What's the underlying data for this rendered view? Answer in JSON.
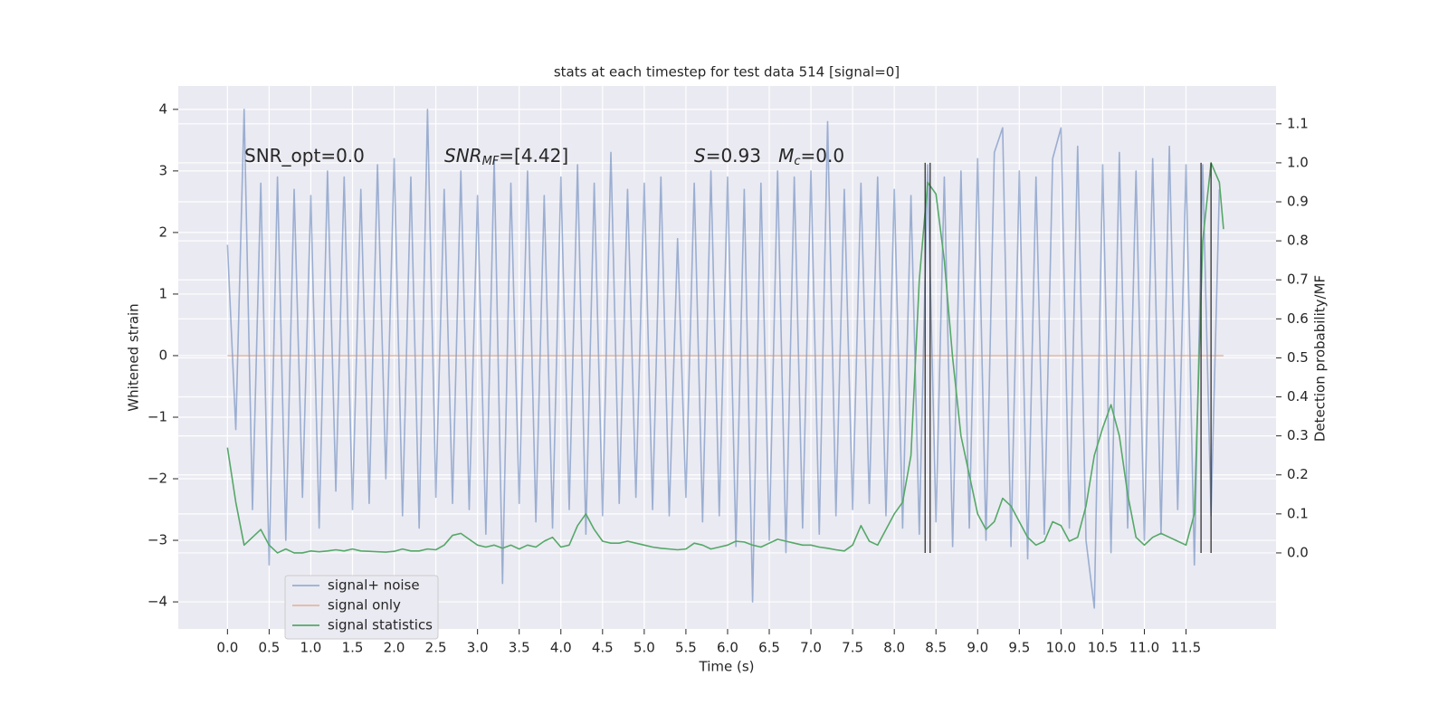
{
  "chart_data": {
    "type": "line",
    "title": "stats at each timestep for test data 514 [signal=0]",
    "xlabel": "Time (s)",
    "ylabel": "Whitened strain",
    "y2label": "Detection probability/MF",
    "xlim": [
      -0.59,
      12.58
    ],
    "ylim": [
      -4.44,
      4.38
    ],
    "y2lim": [
      -0.195,
      1.197
    ],
    "xticks": [
      {
        "value": 0,
        "label": "0.0"
      },
      0.5,
      {
        "value": 1,
        "label": "1.0"
      },
      1.5,
      {
        "value": 2,
        "label": "2.0"
      },
      2.5,
      {
        "value": 3,
        "label": "3.0"
      },
      3.5,
      {
        "value": 4,
        "label": "4.0"
      },
      4.5,
      {
        "value": 5,
        "label": "5.0"
      },
      5.5,
      {
        "value": 6,
        "label": "6.0"
      },
      6.5,
      {
        "value": 7,
        "label": "7.0"
      },
      7.5,
      {
        "value": 8,
        "label": "8.0"
      },
      8.5,
      {
        "value": 9,
        "label": "9.0"
      },
      9.5,
      {
        "value": 10,
        "label": "10.0"
      },
      10.5,
      {
        "value": 11,
        "label": "11.0"
      },
      11.5
    ],
    "yticks": [
      {
        "value": -4,
        "label": "−4"
      },
      {
        "value": -3,
        "label": "−3"
      },
      {
        "value": -2,
        "label": "−2"
      },
      {
        "value": -1,
        "label": "−1"
      },
      0,
      1,
      2,
      3,
      4
    ],
    "y2ticks": [
      {
        "value": 0,
        "label": "0.0"
      },
      0.1,
      0.2,
      0.3,
      0.4,
      0.5,
      0.6,
      0.7,
      0.8,
      0.9,
      {
        "value": 1,
        "label": "1.0"
      },
      1.1
    ],
    "grid": true,
    "legend_loc": "lower left",
    "series": [
      {
        "name": "signal+ noise",
        "color": "#4c72b0",
        "opacity": 0.5,
        "x": [
          0,
          0.1,
          0.2,
          0.3,
          0.4,
          0.5,
          0.6,
          0.7,
          0.8,
          0.9,
          1,
          1.1,
          1.2,
          1.3,
          1.4,
          1.5,
          1.6,
          1.7,
          1.8,
          1.9,
          2,
          2.1,
          2.2,
          2.3,
          2.4,
          2.5,
          2.6,
          2.7,
          2.8,
          2.9,
          3,
          3.1,
          3.2,
          3.3,
          3.4,
          3.5,
          3.6,
          3.7,
          3.8,
          3.9,
          4,
          4.1,
          4.2,
          4.3,
          4.4,
          4.5,
          4.6,
          4.7,
          4.8,
          4.9,
          5,
          5.1,
          5.2,
          5.3,
          5.4,
          5.5,
          5.6,
          5.7,
          5.8,
          5.9,
          6,
          6.1,
          6.2,
          6.3,
          6.4,
          6.5,
          6.6,
          6.7,
          6.8,
          6.9,
          7,
          7.1,
          7.2,
          7.3,
          7.4,
          7.5,
          7.6,
          7.7,
          7.8,
          7.9,
          8,
          8.1,
          8.2,
          8.3,
          8.4,
          8.5,
          8.6,
          8.7,
          8.8,
          8.9,
          9,
          9.1,
          9.2,
          9.3,
          9.4,
          9.5,
          9.6,
          9.7,
          9.8,
          9.9,
          10,
          10.1,
          10.2,
          10.3,
          10.4,
          10.5,
          10.6,
          10.7,
          10.8,
          10.9,
          11,
          11.1,
          11.2,
          11.3,
          11.4,
          11.5,
          11.6,
          11.7,
          11.8,
          11.9
        ],
        "values": [
          1.8,
          -1.2,
          4.0,
          -2.5,
          2.8,
          -3.4,
          2.9,
          -3.0,
          2.7,
          -2.3,
          2.6,
          -2.8,
          3.0,
          -2.2,
          2.9,
          -2.5,
          2.7,
          -2.4,
          3.1,
          -2.0,
          3.2,
          -2.6,
          2.9,
          -2.8,
          4.0,
          -2.3,
          2.7,
          -2.4,
          3.0,
          -2.5,
          2.6,
          -2.9,
          3.2,
          -3.7,
          2.8,
          -2.4,
          3.0,
          -2.7,
          2.6,
          -2.8,
          2.9,
          -2.5,
          3.1,
          -2.9,
          2.8,
          -2.6,
          3.3,
          -2.4,
          2.7,
          -2.3,
          2.8,
          -2.5,
          2.9,
          -2.6,
          1.9,
          -2.3,
          2.8,
          -2.7,
          3.0,
          -2.6,
          2.9,
          -3.1,
          2.7,
          -4.0,
          2.8,
          -3.0,
          3.0,
          -3.2,
          2.9,
          -2.8,
          3.0,
          -2.9,
          3.8,
          -2.6,
          2.7,
          -2.5,
          2.8,
          -2.4,
          2.9,
          -2.6,
          2.7,
          -2.8,
          2.6,
          -2.9,
          3.1,
          -2.7,
          2.9,
          -3.1,
          3.0,
          -2.8,
          3.2,
          -3.0,
          3.3,
          3.7,
          -3.1,
          3.0,
          -3.3,
          2.9,
          -2.9,
          3.2,
          3.7,
          -2.8,
          3.4,
          -3.0,
          -4.1,
          3.1,
          -3.2,
          3.3,
          -2.8,
          3.0,
          -3.0,
          3.2,
          -2.9,
          3.4,
          -2.5,
          3.1,
          -3.4,
          3.1,
          -2.6,
          2.7
        ]
      },
      {
        "name": "signal only",
        "color": "#dd8452",
        "opacity": 0.5,
        "x": [
          0,
          11.95
        ],
        "values": [
          0,
          0
        ]
      },
      {
        "name": "signal statistics",
        "color": "#55a868",
        "opacity": 1,
        "axis": "y2",
        "x": [
          0,
          0.1,
          0.2,
          0.3,
          0.4,
          0.5,
          0.6,
          0.7,
          0.8,
          0.9,
          1,
          1.1,
          1.2,
          1.3,
          1.4,
          1.5,
          1.6,
          1.7,
          1.8,
          1.9,
          2,
          2.1,
          2.2,
          2.3,
          2.4,
          2.5,
          2.6,
          2.7,
          2.8,
          2.9,
          3,
          3.1,
          3.2,
          3.3,
          3.4,
          3.5,
          3.6,
          3.7,
          3.8,
          3.9,
          4,
          4.1,
          4.2,
          4.3,
          4.4,
          4.5,
          4.6,
          4.7,
          4.8,
          4.9,
          5,
          5.1,
          5.2,
          5.3,
          5.4,
          5.5,
          5.6,
          5.7,
          5.8,
          5.9,
          6,
          6.1,
          6.2,
          6.3,
          6.4,
          6.5,
          6.6,
          6.7,
          6.8,
          6.9,
          7,
          7.1,
          7.2,
          7.3,
          7.4,
          7.5,
          7.6,
          7.7,
          7.8,
          7.9,
          8,
          8.1,
          8.2,
          8.3,
          8.4,
          8.5,
          8.6,
          8.7,
          8.8,
          8.9,
          9,
          9.1,
          9.2,
          9.3,
          9.4,
          9.5,
          9.6,
          9.7,
          9.8,
          9.9,
          10,
          10.1,
          10.2,
          10.3,
          10.4,
          10.5,
          10.6,
          10.7,
          10.8,
          10.9,
          11,
          11.1,
          11.2,
          11.3,
          11.4,
          11.5,
          11.6,
          11.7,
          11.8,
          11.9,
          11.95
        ],
        "values": [
          0.27,
          0.13,
          0.02,
          0.04,
          0.06,
          0.02,
          0.0,
          0.01,
          0.0,
          0.0,
          0.005,
          0.003,
          0.005,
          0.008,
          0.005,
          0.01,
          0.005,
          0.004,
          0.003,
          0.002,
          0.004,
          0.01,
          0.005,
          0.005,
          0.01,
          0.008,
          0.02,
          0.045,
          0.05,
          0.035,
          0.02,
          0.015,
          0.02,
          0.012,
          0.02,
          0.01,
          0.02,
          0.015,
          0.03,
          0.04,
          0.015,
          0.02,
          0.07,
          0.1,
          0.06,
          0.03,
          0.025,
          0.025,
          0.03,
          0.025,
          0.02,
          0.015,
          0.012,
          0.01,
          0.008,
          0.01,
          0.025,
          0.02,
          0.01,
          0.015,
          0.02,
          0.03,
          0.028,
          0.02,
          0.015,
          0.025,
          0.035,
          0.03,
          0.025,
          0.02,
          0.02,
          0.015,
          0.012,
          0.008,
          0.005,
          0.02,
          0.07,
          0.03,
          0.02,
          0.06,
          0.1,
          0.13,
          0.25,
          0.7,
          0.95,
          0.92,
          0.75,
          0.5,
          0.3,
          0.2,
          0.1,
          0.06,
          0.08,
          0.14,
          0.12,
          0.08,
          0.04,
          0.02,
          0.03,
          0.08,
          0.07,
          0.03,
          0.04,
          0.12,
          0.25,
          0.32,
          0.38,
          0.3,
          0.15,
          0.04,
          0.02,
          0.04,
          0.05,
          0.04,
          0.03,
          0.02,
          0.1,
          0.8,
          1.0,
          0.95,
          0.83
        ]
      }
    ],
    "vlines": {
      "color": "#333333",
      "x": [
        8.37,
        8.43,
        11.68,
        11.8
      ],
      "range": [
        0,
        1
      ]
    },
    "annotations": [
      {
        "parts": [
          {
            "text": "SNR_opt=0.0",
            "style": "normal"
          }
        ]
      },
      {
        "parts": [
          {
            "text": "SNR",
            "style": "italic"
          },
          {
            "text": "MF",
            "style": "sub"
          },
          {
            "text": "=[4.42]",
            "style": "normal"
          }
        ]
      },
      {
        "parts": [
          {
            "text": "S",
            "style": "italic"
          },
          {
            "text": "=0.93   ",
            "style": "normal"
          },
          {
            "text": "M",
            "style": "italic"
          },
          {
            "text": "c",
            "style": "sub"
          },
          {
            "text": "=0.0",
            "style": "normal"
          }
        ]
      }
    ]
  }
}
